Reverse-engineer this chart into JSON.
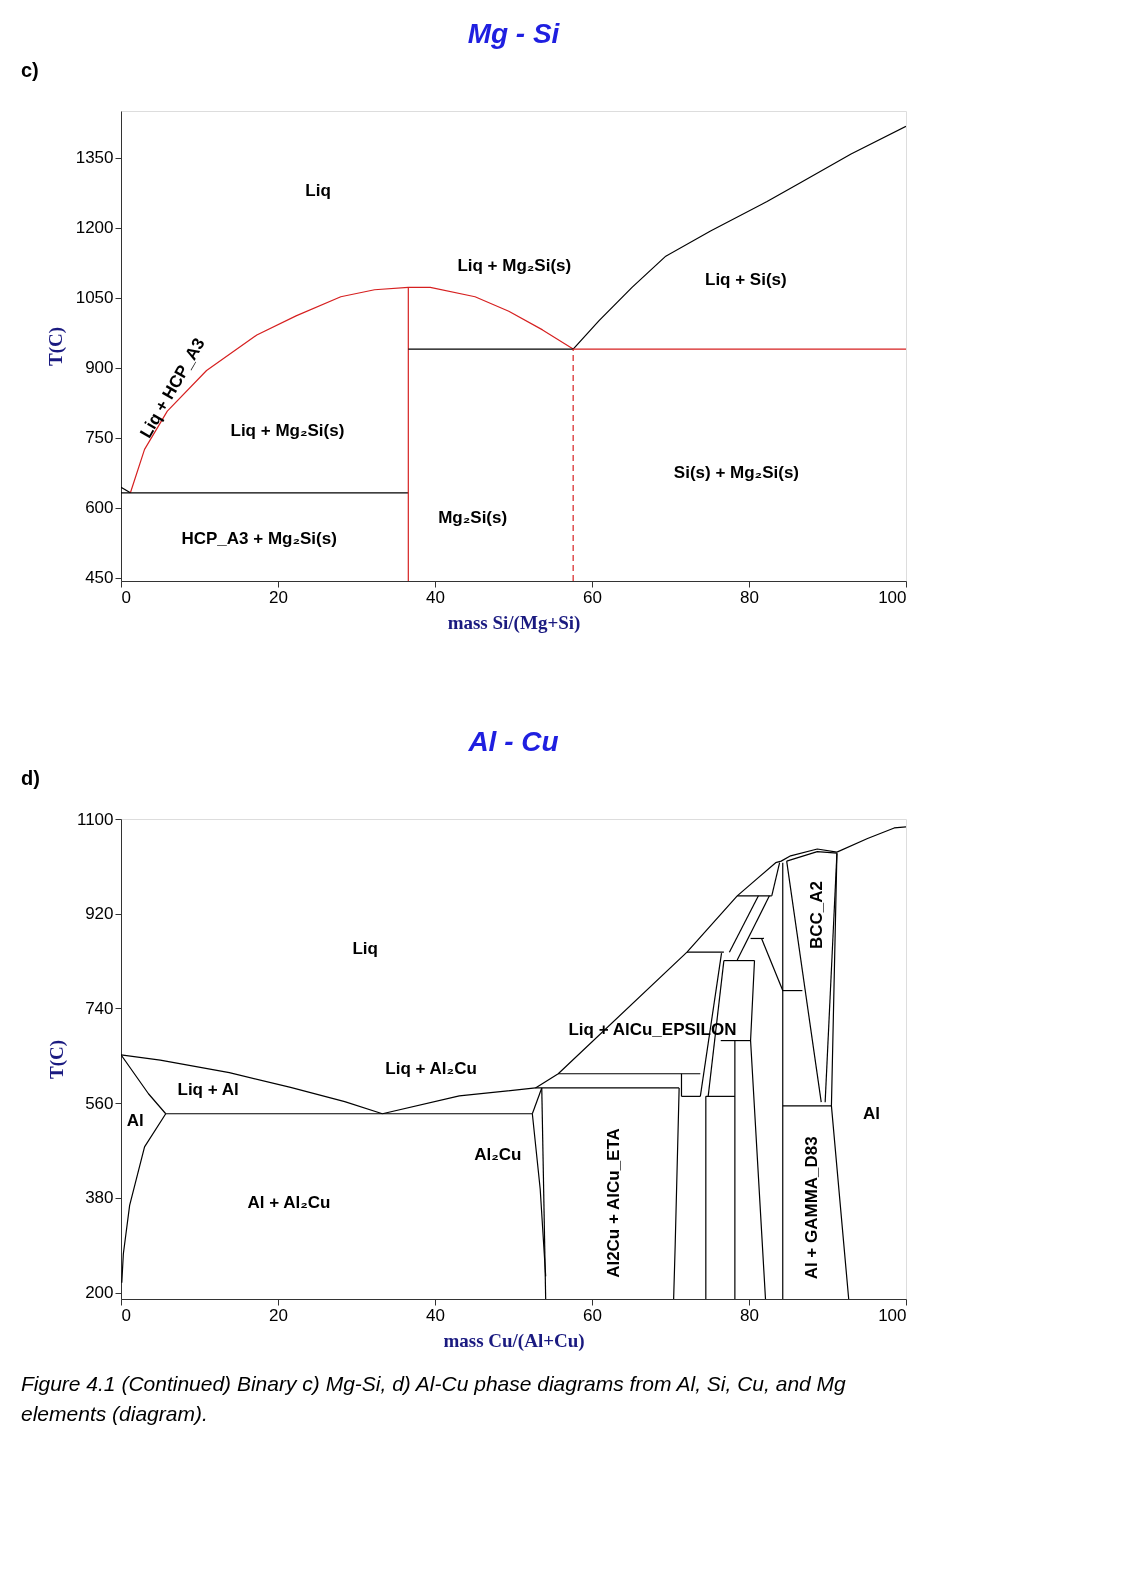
{
  "chart_data": [
    {
      "type": "line",
      "title": "Mg - Si",
      "xlabel": "mass Si/(Mg+Si)",
      "ylabel": "T(C)",
      "xlim": [
        0,
        100
      ],
      "ylim": [
        443,
        1450
      ],
      "xticks": [
        0,
        20,
        40,
        60,
        80,
        100
      ],
      "yticks": [
        450,
        600,
        750,
        900,
        1050,
        1200,
        1350
      ],
      "grid": false,
      "marker": "none",
      "series": [
        {
          "color": "#000000",
          "x": [
            0,
            1.2
          ],
          "values": [
            644,
            632
          ]
        },
        {
          "color": "#d62020",
          "x": [
            1.2,
            3,
            5.9,
            10.9,
            17.3,
            22.3,
            28,
            32.3,
            36.6,
            39.4,
            45.1,
            49.4,
            53.7,
            57.6
          ],
          "values": [
            632,
            725,
            807,
            894,
            970,
            1011,
            1052,
            1067,
            1072,
            1072,
            1052,
            1021,
            981,
            940
          ]
        },
        {
          "color": "#000000",
          "x": [
            57.6,
            60.9,
            65.1,
            69.4,
            75.1,
            82.3,
            86.6,
            93,
            100
          ],
          "values": [
            940,
            1001,
            1072,
            1139,
            1193,
            1256,
            1297,
            1358,
            1417
          ]
        },
        {
          "color": "#000000",
          "x": [
            0,
            36.6
          ],
          "values": [
            632,
            632
          ]
        },
        {
          "color": "#d62020",
          "x": [
            36.6,
            36.6
          ],
          "values": [
            443,
            1072
          ]
        },
        {
          "color": "#000000",
          "x": [
            36.6,
            57.6
          ],
          "values": [
            940,
            940
          ]
        },
        {
          "color": "#d62020",
          "x": [
            57.6,
            100
          ],
          "values": [
            940,
            940
          ]
        },
        {
          "color": "#d62020",
          "line_style": "dashed",
          "x": [
            57.6,
            57.6
          ],
          "values": [
            443,
            940
          ]
        }
      ],
      "annotations": [
        "c)",
        "Liq",
        "Liq + Mg₂Si(s)",
        "Liq + Si(s)",
        "Liq + HCP_A3",
        "Liq + Mg₂Si(s)",
        "Si(s) + Mg₂Si(s)",
        "Mg₂Si(s)",
        "HCP_A3 + Mg₂Si(s)"
      ]
    },
    {
      "type": "line",
      "title": "Al - Cu",
      "xlabel": "mass Cu/(Al+Cu)",
      "ylabel": "T(C)",
      "xlim": [
        0,
        100
      ],
      "ylim": [
        188,
        1100
      ],
      "xticks": [
        0,
        20,
        40,
        60,
        80,
        100
      ],
      "yticks": [
        200,
        380,
        560,
        740,
        920,
        1100
      ],
      "grid": false,
      "marker": "none",
      "series": [
        {
          "color": "#000000",
          "x": [
            0,
            5,
            13.8,
            21.6,
            28.5,
            33.3
          ],
          "values": [
            652,
            642,
            618,
            590,
            563,
            540
          ]
        },
        {
          "color": "#000000",
          "x": [
            0,
            3.5,
            5.7
          ],
          "values": [
            652,
            578,
            540
          ]
        },
        {
          "color": "#000000",
          "x": [
            5.7,
            3.0,
            1.1,
            0.3,
            0.1
          ],
          "values": [
            540,
            477,
            366,
            274,
            219
          ]
        },
        {
          "color": "#000000",
          "x": [
            5.7,
            52.4
          ],
          "values": [
            540,
            540
          ]
        },
        {
          "color": "#000000",
          "x": [
            33.3,
            43.1,
            52.8,
            55.7,
            72.1,
            78.5,
            83.4,
            84.1,
            85.3,
            88.7,
            91.2,
            95.1,
            98.5,
            100
          ],
          "values": [
            540,
            574,
            589,
            616,
            847,
            954,
            1017,
            1020,
            1030,
            1043,
            1037,
            1063,
            1083,
            1085
          ]
        },
        {
          "color": "#000000",
          "x": [
            84.8,
            88.7,
            91.2
          ],
          "values": [
            1020,
            1038,
            1035
          ]
        },
        {
          "color": "#000000",
          "x": [
            52.4,
            53.6
          ],
          "values": [
            540,
            589
          ]
        },
        {
          "color": "#000000",
          "x": [
            52.4,
            53.4,
            54.1
          ],
          "values": [
            540,
            397,
            231
          ]
        },
        {
          "color": "#000000",
          "x": [
            53.6,
            54.1
          ],
          "values": [
            589,
            188
          ]
        },
        {
          "color": "#000000",
          "x": [
            52.8,
            71.1
          ],
          "values": [
            589,
            589
          ]
        },
        {
          "color": "#000000",
          "x": [
            55.7,
            73.8
          ],
          "values": [
            616,
            616
          ]
        },
        {
          "color": "#000000",
          "x": [
            72.1,
            76.8
          ],
          "values": [
            847,
            847
          ]
        },
        {
          "color": "#000000",
          "x": [
            78.5,
            82.9
          ],
          "values": [
            954,
            954
          ]
        },
        {
          "color": "#000000",
          "x": [
            76.8,
            80.7
          ],
          "values": [
            831,
            831
          ]
        },
        {
          "color": "#000000",
          "x": [
            80.2,
            81.9
          ],
          "values": [
            873,
            873
          ]
        },
        {
          "color": "#000000",
          "x": [
            76.4,
            80.2
          ],
          "values": [
            679,
            679
          ]
        },
        {
          "color": "#000000",
          "x": [
            71.4,
            73.8
          ],
          "values": [
            573,
            573
          ]
        },
        {
          "color": "#000000",
          "x": [
            74.5,
            78.2
          ],
          "values": [
            573,
            573
          ]
        },
        {
          "color": "#000000",
          "x": [
            84.2,
            86.8
          ],
          "values": [
            774,
            774
          ]
        },
        {
          "color": "#000000",
          "x": [
            84.3,
            90.5
          ],
          "values": [
            555,
            555
          ]
        },
        {
          "color": "#000000",
          "x": [
            71.1,
            70.6,
            70.4
          ],
          "values": [
            589,
            292,
            188
          ]
        },
        {
          "color": "#000000",
          "x": [
            71.4,
            71.4
          ],
          "values": [
            616,
            573
          ]
        },
        {
          "color": "#000000",
          "x": [
            73.8,
            76.5
          ],
          "values": [
            573,
            845
          ]
        },
        {
          "color": "#000000",
          "x": [
            74.5,
            74.5
          ],
          "values": [
            573,
            188
          ]
        },
        {
          "color": "#000000",
          "x": [
            78.2,
            78.2
          ],
          "values": [
            679,
            188
          ]
        },
        {
          "color": "#000000",
          "x": [
            76.8,
            74.8
          ],
          "values": [
            831,
            573
          ]
        },
        {
          "color": "#000000",
          "x": [
            80.7,
            80.2,
            82.1
          ],
          "values": [
            831,
            679,
            188
          ]
        },
        {
          "color": "#000000",
          "x": [
            77.5,
            81.2
          ],
          "values": [
            847,
            954
          ]
        },
        {
          "color": "#000000",
          "x": [
            78.5,
            82.6
          ],
          "values": [
            832,
            954
          ]
        },
        {
          "color": "#000000",
          "x": [
            81.6,
            84.3
          ],
          "values": [
            873,
            774
          ]
        },
        {
          "color": "#000000",
          "x": [
            84.3,
            84.3
          ],
          "values": [
            1017,
            188
          ]
        },
        {
          "color": "#000000",
          "x": [
            82.9,
            83.9
          ],
          "values": [
            954,
            1017
          ]
        },
        {
          "color": "#000000",
          "x": [
            84.8,
            89.2
          ],
          "values": [
            1020,
            562
          ]
        },
        {
          "color": "#000000",
          "x": [
            91.2,
            89.7
          ],
          "values": [
            1035,
            562
          ]
        },
        {
          "color": "#000000",
          "x": [
            91.2,
            90.5,
            92.7
          ],
          "values": [
            1035,
            555,
            188
          ]
        }
      ],
      "annotations": [
        "d)",
        "Liq",
        "Liq + Al",
        "Al",
        "Liq + Al₂Cu",
        "Al₂Cu",
        "Al + Al₂Cu",
        "Liq + AlCu_EPSILON",
        "Al2Cu + AlCu_ETA",
        "BCC_A2",
        "Al + GAMMA_D83",
        "Al",
        "Figure 4.1 (Continued) Binary c) Mg-Si, d) Al-Cu phase diagrams from Al, Si, Cu, and Mg elements (diagram)."
      ]
    }
  ]
}
